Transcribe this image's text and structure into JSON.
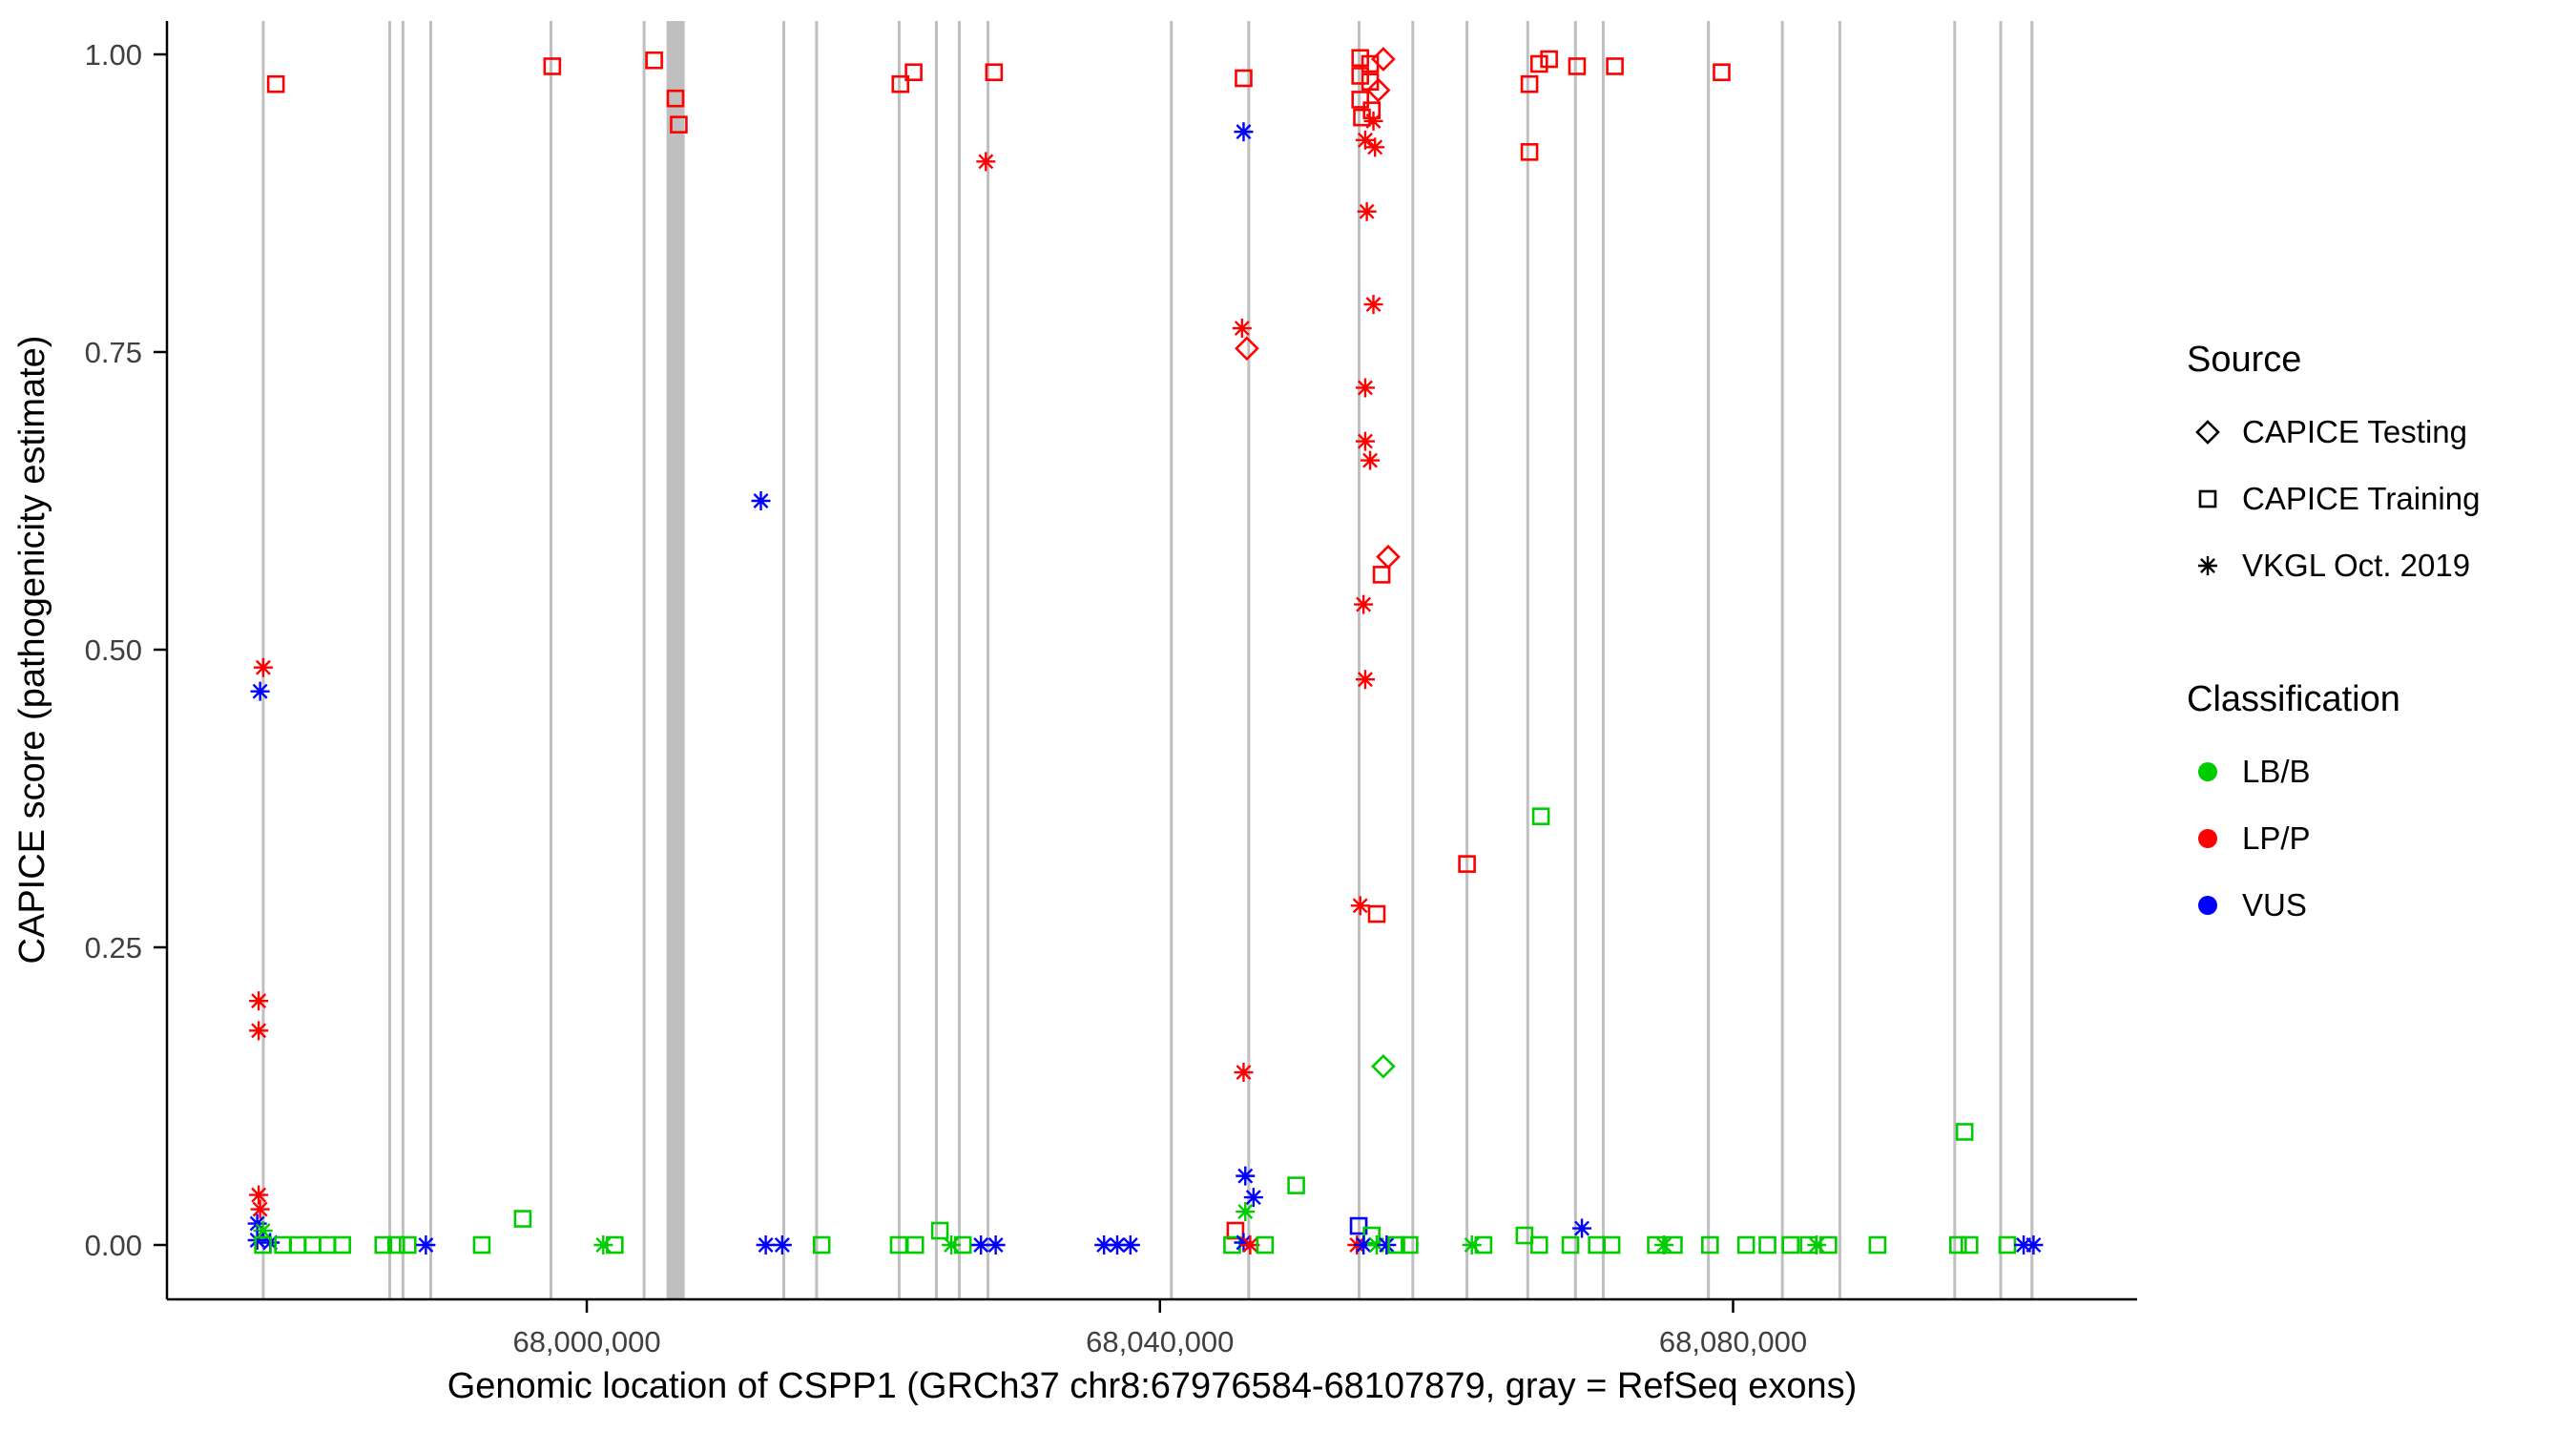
{
  "colors": {
    "background": "#FFFFFF",
    "axis_line": "#000000",
    "tick_label": "#404040",
    "exon": "#BFBFBF"
  },
  "legend": {
    "source_title": "Source",
    "source_items": [
      {
        "label": "CAPICE Testing",
        "shape": "diamond"
      },
      {
        "label": "CAPICE Training",
        "shape": "square"
      },
      {
        "label": "VKGL Oct. 2019",
        "shape": "asterisk"
      }
    ],
    "classification_title": "Classification",
    "classification_items": [
      {
        "label": "LB/B",
        "color": "#00CC00"
      },
      {
        "label": "LP/P",
        "color": "#FF0000"
      },
      {
        "label": "VUS",
        "color": "#0000FF"
      }
    ]
  },
  "chart_data": {
    "type": "scatter",
    "title": "",
    "xlabel": "Genomic location of CSPP1 (GRCh37 chr8:67976584-68107879, gray = RefSeq exons)",
    "ylabel": "CAPICE score (pathogenicity estimate)",
    "legend_position": "right",
    "grid": false,
    "x_domain": [
      67970700,
      68108200
    ],
    "y_range": [
      0,
      1
    ],
    "x_ticks": [
      {
        "value": 68000000,
        "label": "68,000,000"
      },
      {
        "value": 68040000,
        "label": "68,040,000"
      },
      {
        "value": 68080000,
        "label": "68,080,000"
      }
    ],
    "y_ticks": [
      {
        "value": 0.0,
        "label": "0.00"
      },
      {
        "value": 0.25,
        "label": "0.25"
      },
      {
        "value": 0.5,
        "label": "0.50"
      },
      {
        "value": 0.75,
        "label": "0.75"
      },
      {
        "value": 1.0,
        "label": "1.00"
      }
    ],
    "source_shapes": {
      "testing": "diamond",
      "training": "square",
      "vkgl": "asterisk"
    },
    "source_labels": {
      "testing": "CAPICE Testing",
      "training": "CAPICE Training",
      "vkgl": "VKGL Oct. 2019"
    },
    "classification_colors": {
      "lbb": "#00CC00",
      "lpp": "#FF0000",
      "vus": "#0000FF"
    },
    "classification_labels": {
      "lbb": "LB/B",
      "lpp": "LP/P",
      "vus": "VUS"
    },
    "exons": {
      "positions": [
        67977420,
        67986250,
        67987170,
        67989110,
        67997500,
        68004000,
        68013750,
        68016040,
        68021800,
        68024400,
        68026000,
        68028000,
        68040800,
        68046200,
        68053900,
        68057650,
        68061430,
        68065670,
        68069000,
        68070940,
        68078280,
        68083440,
        68087450,
        68095470,
        68098680,
        68100860
      ],
      "thick_positions": [
        68005900,
        68006500
      ]
    },
    "points_format": [
      "genomic_position",
      "capice_score",
      "source",
      "classification"
    ],
    "points": [
      [
        67978300,
        0.975,
        "training",
        "lpp"
      ],
      [
        67977420,
        0.485,
        "vkgl",
        "lpp"
      ],
      [
        67977200,
        0.465,
        "vkgl",
        "vus"
      ],
      [
        67977100,
        0.205,
        "vkgl",
        "lpp"
      ],
      [
        67977100,
        0.18,
        "vkgl",
        "lpp"
      ],
      [
        67977100,
        0.042,
        "vkgl",
        "lpp"
      ],
      [
        67977200,
        0.03,
        "vkgl",
        "lpp"
      ],
      [
        67977000,
        0.018,
        "vkgl",
        "vus"
      ],
      [
        67977400,
        0.012,
        "vkgl",
        "lbb"
      ],
      [
        67977000,
        0.004,
        "vkgl",
        "vus"
      ],
      [
        67977900,
        0.002,
        "vkgl",
        "vus"
      ],
      [
        67977400,
        0.0,
        "training",
        "lbb"
      ],
      [
        67978800,
        0.0,
        "training",
        "lbb"
      ],
      [
        67979830,
        0.0,
        "training",
        "lbb"
      ],
      [
        67980860,
        0.0,
        "training",
        "lbb"
      ],
      [
        67981900,
        0.0,
        "training",
        "lbb"
      ],
      [
        67982930,
        0.0,
        "training",
        "lbb"
      ],
      [
        67985800,
        0.0,
        "training",
        "lbb"
      ],
      [
        67986700,
        0.0,
        "training",
        "lbb"
      ],
      [
        67987500,
        0.0,
        "training",
        "lbb"
      ],
      [
        67988770,
        0.0,
        "vkgl",
        "vus"
      ],
      [
        67992670,
        0.0,
        "training",
        "lbb"
      ],
      [
        67995530,
        0.022,
        "training",
        "lbb"
      ],
      [
        67997590,
        0.99,
        "training",
        "lpp"
      ],
      [
        68001150,
        0.0,
        "vkgl",
        "lbb"
      ],
      [
        68001950,
        0.0,
        "training",
        "lbb"
      ],
      [
        68004700,
        0.995,
        "training",
        "lpp"
      ],
      [
        68006190,
        0.963,
        "training",
        "lpp"
      ],
      [
        68006420,
        0.941,
        "training",
        "lpp"
      ],
      [
        68012150,
        0.625,
        "vkgl",
        "vus"
      ],
      [
        68012490,
        0.0,
        "vkgl",
        "vus"
      ],
      [
        68013640,
        0.0,
        "vkgl",
        "vus"
      ],
      [
        68016390,
        0.0,
        "training",
        "lbb"
      ],
      [
        68021890,
        0.975,
        "training",
        "lpp"
      ],
      [
        68022810,
        0.985,
        "training",
        "lpp"
      ],
      [
        68021770,
        0.0,
        "training",
        "lbb"
      ],
      [
        68022920,
        0.0,
        "training",
        "lbb"
      ],
      [
        68024640,
        0.012,
        "training",
        "lbb"
      ],
      [
        68025440,
        0.0,
        "vkgl",
        "lbb"
      ],
      [
        68026240,
        0.0,
        "training",
        "lbb"
      ],
      [
        68027850,
        0.91,
        "vkgl",
        "lpp"
      ],
      [
        68028420,
        0.985,
        "training",
        "lpp"
      ],
      [
        68027510,
        0.0,
        "vkgl",
        "vus"
      ],
      [
        68028540,
        0.0,
        "vkgl",
        "vus"
      ],
      [
        68036100,
        0.0,
        "vkgl",
        "vus"
      ],
      [
        68037020,
        0.0,
        "vkgl",
        "vus"
      ],
      [
        68037940,
        0.0,
        "vkgl",
        "vus"
      ],
      [
        68045840,
        0.98,
        "training",
        "lpp"
      ],
      [
        68045840,
        0.935,
        "vkgl",
        "vus"
      ],
      [
        68045730,
        0.77,
        "vkgl",
        "lpp"
      ],
      [
        68046070,
        0.753,
        "testing",
        "lpp"
      ],
      [
        68045840,
        0.145,
        "vkgl",
        "lpp"
      ],
      [
        68045960,
        0.058,
        "vkgl",
        "vus"
      ],
      [
        68046530,
        0.04,
        "vkgl",
        "vus"
      ],
      [
        68045960,
        0.028,
        "vkgl",
        "lbb"
      ],
      [
        68045270,
        0.012,
        "training",
        "lpp"
      ],
      [
        68045040,
        0.0,
        "training",
        "lbb"
      ],
      [
        68045840,
        0.002,
        "vkgl",
        "vus"
      ],
      [
        68046300,
        0.0,
        "vkgl",
        "lpp"
      ],
      [
        68047330,
        0.0,
        "training",
        "lbb"
      ],
      [
        68049510,
        0.05,
        "training",
        "lbb"
      ],
      [
        68053980,
        0.997,
        "training",
        "lpp"
      ],
      [
        68054670,
        0.992,
        "training",
        "lpp"
      ],
      [
        68055590,
        0.996,
        "testing",
        "lpp"
      ],
      [
        68053980,
        0.982,
        "training",
        "lpp"
      ],
      [
        68054670,
        0.977,
        "training",
        "lpp"
      ],
      [
        68055240,
        0.97,
        "testing",
        "lpp"
      ],
      [
        68053980,
        0.962,
        "training",
        "lpp"
      ],
      [
        68054780,
        0.953,
        "training",
        "lpp"
      ],
      [
        68054100,
        0.947,
        "training",
        "lpp"
      ],
      [
        68054900,
        0.944,
        "vkgl",
        "lpp"
      ],
      [
        68054330,
        0.928,
        "vkgl",
        "lpp"
      ],
      [
        68055010,
        0.922,
        "vkgl",
        "lpp"
      ],
      [
        68054440,
        0.868,
        "vkgl",
        "lpp"
      ],
      [
        68054900,
        0.79,
        "vkgl",
        "lpp"
      ],
      [
        68054330,
        0.72,
        "vkgl",
        "lpp"
      ],
      [
        68054330,
        0.675,
        "vkgl",
        "lpp"
      ],
      [
        68054670,
        0.659,
        "vkgl",
        "lpp"
      ],
      [
        68055930,
        0.578,
        "testing",
        "lpp"
      ],
      [
        68055470,
        0.563,
        "training",
        "lpp"
      ],
      [
        68054210,
        0.538,
        "vkgl",
        "lpp"
      ],
      [
        68054330,
        0.475,
        "vkgl",
        "lpp"
      ],
      [
        68053980,
        0.285,
        "vkgl",
        "lpp"
      ],
      [
        68055130,
        0.278,
        "training",
        "lpp"
      ],
      [
        68055590,
        0.15,
        "testing",
        "lbb"
      ],
      [
        68053870,
        0.016,
        "training",
        "vus"
      ],
      [
        68054780,
        0.008,
        "training",
        "lbb"
      ],
      [
        68053750,
        0.0,
        "vkgl",
        "lpp"
      ],
      [
        68054210,
        0.0,
        "vkgl",
        "vus"
      ],
      [
        68055130,
        0.0,
        "vkgl",
        "lbb"
      ],
      [
        68055820,
        0.0,
        "vkgl",
        "vus"
      ],
      [
        68056500,
        0.0,
        "training",
        "lbb"
      ],
      [
        68057420,
        0.0,
        "training",
        "lbb"
      ],
      [
        68061430,
        0.32,
        "training",
        "lpp"
      ],
      [
        68061770,
        0.0,
        "vkgl",
        "lbb"
      ],
      [
        68062580,
        0.0,
        "training",
        "lbb"
      ],
      [
        68065790,
        0.975,
        "training",
        "lpp"
      ],
      [
        68066470,
        0.992,
        "training",
        "lpp"
      ],
      [
        68067160,
        0.996,
        "training",
        "lpp"
      ],
      [
        68065790,
        0.918,
        "training",
        "lpp"
      ],
      [
        68066590,
        0.36,
        "training",
        "lbb"
      ],
      [
        68069110,
        0.99,
        "training",
        "lpp"
      ],
      [
        68071750,
        0.99,
        "training",
        "lpp"
      ],
      [
        68065440,
        0.008,
        "training",
        "lbb"
      ],
      [
        68066470,
        0.0,
        "training",
        "lbb"
      ],
      [
        68068650,
        0.0,
        "training",
        "lbb"
      ],
      [
        68069450,
        0.014,
        "vkgl",
        "vus"
      ],
      [
        68070490,
        0.0,
        "training",
        "lbb"
      ],
      [
        68071520,
        0.0,
        "training",
        "lbb"
      ],
      [
        68074610,
        0.0,
        "training",
        "lbb"
      ],
      [
        68075180,
        0.0,
        "vkgl",
        "lbb"
      ],
      [
        68075870,
        0.0,
        "training",
        "lbb"
      ],
      [
        68079200,
        0.985,
        "training",
        "lpp"
      ],
      [
        68078390,
        0.0,
        "training",
        "lbb"
      ],
      [
        68080910,
        0.0,
        "training",
        "lbb"
      ],
      [
        68082400,
        0.0,
        "training",
        "lbb"
      ],
      [
        68084010,
        0.0,
        "training",
        "lbb"
      ],
      [
        68085270,
        0.0,
        "training",
        "lbb"
      ],
      [
        68085840,
        0.0,
        "vkgl",
        "lbb"
      ],
      [
        68086650,
        0.0,
        "training",
        "lbb"
      ],
      [
        68090080,
        0.0,
        "training",
        "lbb"
      ],
      [
        68096160,
        0.095,
        "training",
        "lbb"
      ],
      [
        68095700,
        0.0,
        "training",
        "lbb"
      ],
      [
        68096500,
        0.0,
        "training",
        "lbb"
      ],
      [
        68099140,
        0.0,
        "training",
        "lbb"
      ],
      [
        68100280,
        0.0,
        "vkgl",
        "vus"
      ],
      [
        68100970,
        0.0,
        "vkgl",
        "vus"
      ]
    ]
  }
}
